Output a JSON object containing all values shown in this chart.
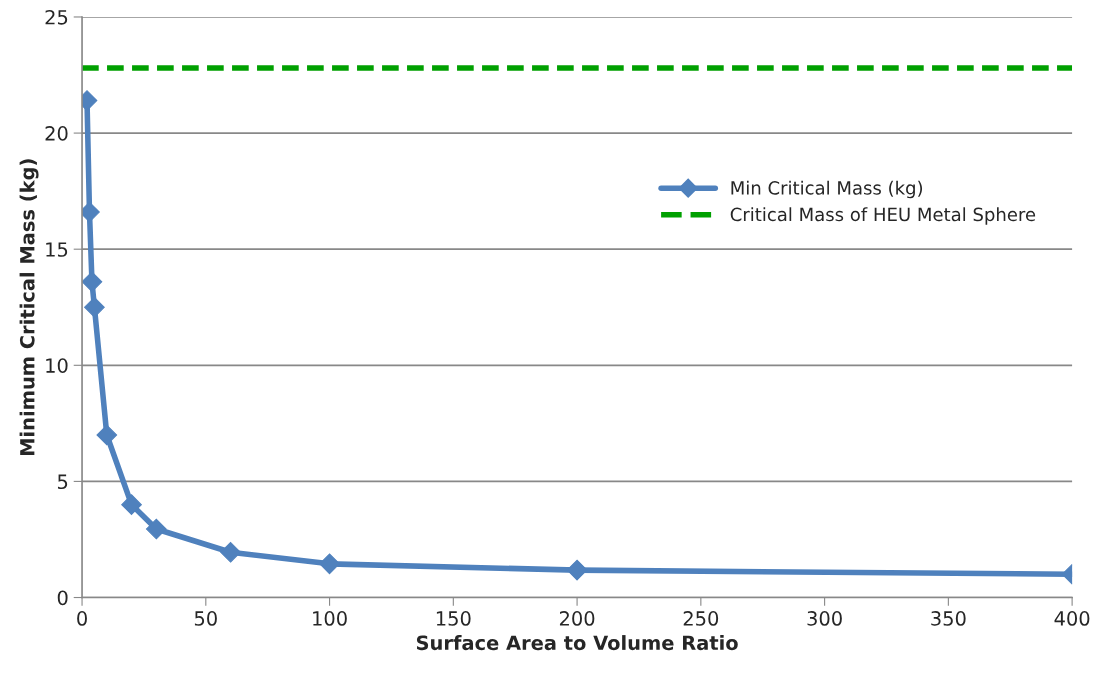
{
  "chart_data": {
    "type": "line",
    "xlabel": "Surface Area to Volume Ratio",
    "ylabel": "Minimum Critical Mass (kg)",
    "x": [
      2,
      3,
      4,
      5,
      10,
      20,
      30,
      60,
      100,
      200,
      400
    ],
    "series": [
      {
        "name": "Min Critical Mass (kg)",
        "color": "#4f81bd",
        "marker": "diamond",
        "line_style": "solid",
        "values": [
          21.4,
          16.6,
          13.6,
          12.5,
          7,
          4,
          2.95,
          1.95,
          1.45,
          1.18,
          1.0
        ]
      }
    ],
    "ref_lines": [
      {
        "axis": "y",
        "value": 22.8,
        "label": "Critical Mass of HEU Metal Sphere",
        "color": "#00a000",
        "line_style": "dashed"
      }
    ],
    "xlim": [
      0,
      400
    ],
    "xticks": [
      0,
      50,
      100,
      150,
      200,
      250,
      300,
      350,
      400
    ],
    "ylim": [
      0,
      25
    ],
    "yticks": [
      0,
      5,
      10,
      15,
      20,
      25
    ],
    "grid": "y",
    "legend": "right"
  }
}
